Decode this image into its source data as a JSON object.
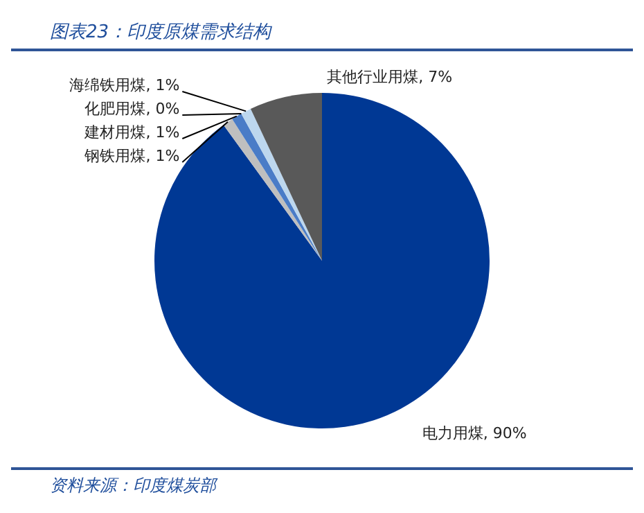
{
  "chart_data": {
    "type": "pie",
    "title": "图表23：印度原煤需求结构",
    "categories": [
      "电力用煤",
      "钢铁用煤",
      "建材用煤",
      "化肥用煤",
      "海绵铁用煤",
      "其他行业用煤"
    ],
    "values": [
      90,
      1,
      1,
      0,
      1,
      7
    ],
    "value_labels": [
      "90%",
      "1%",
      "1%",
      "0%",
      "1%",
      "7%"
    ],
    "colors": [
      "#003894",
      "#bfbfbf",
      "#4a7cc7",
      "#7f7f7f",
      "#bdd7ee",
      "#595959"
    ],
    "annotations": [
      "资料来源：印度煤炭部"
    ]
  }
}
